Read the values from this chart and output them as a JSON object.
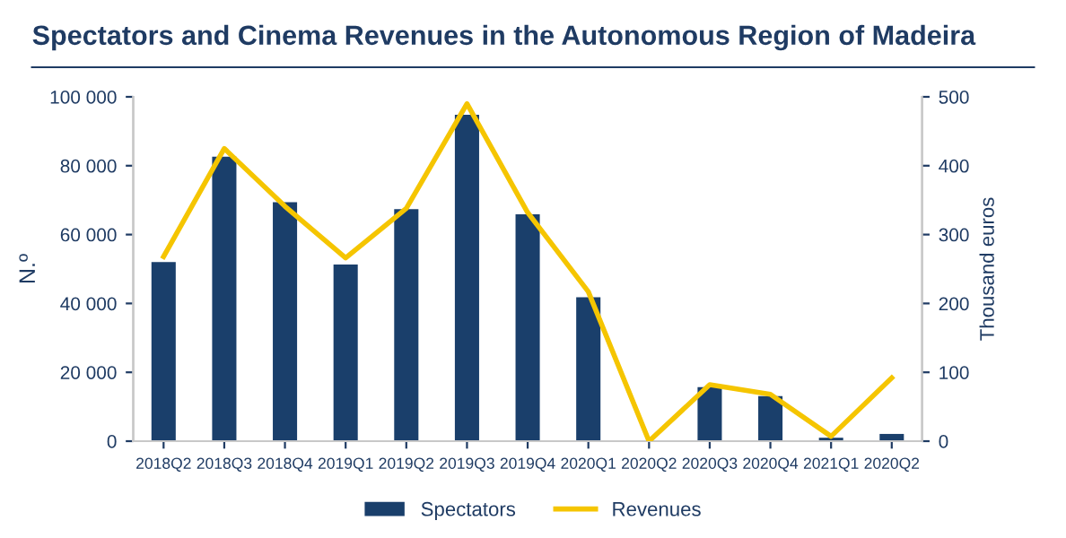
{
  "chart_data": {
    "type": "bar",
    "title": "Spectators and Cinema Revenues in the Autonomous Region of Madeira",
    "ylabel": "N.º",
    "y2label": "Thousand euros",
    "categories": [
      "2018Q2",
      "2018Q3",
      "2018Q4",
      "2019Q1",
      "2019Q2",
      "2019Q3",
      "2019Q4",
      "2020Q1",
      "2020Q2",
      "2020Q3",
      "2020Q4",
      "2021Q1",
      "2020Q2"
    ],
    "series": [
      {
        "name": "Spectators",
        "color": "#1a3f6b",
        "values": [
          52000,
          82600,
          69400,
          51300,
          67400,
          94800,
          65900,
          41800,
          0,
          15700,
          13100,
          1000,
          2100
        ]
      },
      {
        "name": "Revenues",
        "type": "line",
        "axis": "y2",
        "color": "#f5c500",
        "values": [
          268,
          425,
          341,
          266,
          338,
          490,
          332,
          217,
          0,
          82,
          68,
          7,
          92
        ]
      }
    ],
    "ylim": [
      0,
      100000
    ],
    "yticks": [
      0,
      {
        "value": 20000,
        "label": "20 000"
      },
      {
        "value": 40000,
        "label": "40 000"
      },
      {
        "value": 60000,
        "label": "60 000"
      },
      {
        "value": 80000,
        "label": "80 000"
      },
      {
        "value": 100000,
        "label": "100 000"
      }
    ],
    "y2lim": [
      0,
      500
    ],
    "y2ticks": [
      0,
      100,
      200,
      300,
      400,
      500
    ],
    "grid": false,
    "legend": "bottom",
    "marker": "none",
    "line_style": "solid"
  }
}
